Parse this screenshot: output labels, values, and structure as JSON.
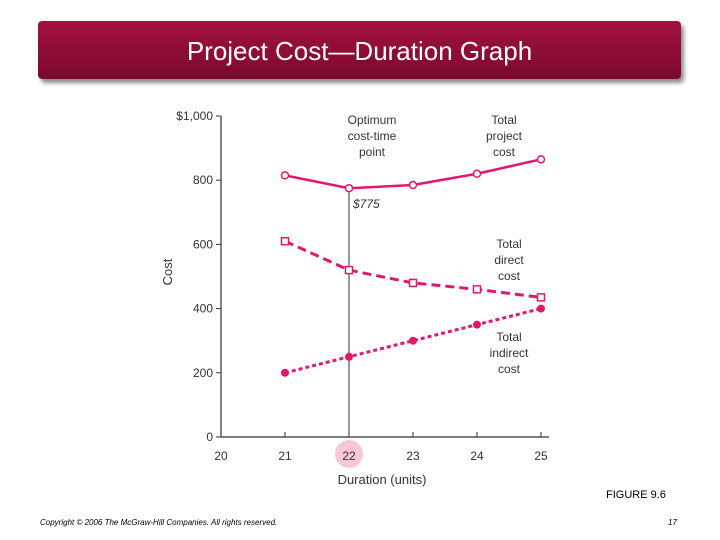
{
  "slide": {
    "title": "Project Cost—Duration Graph",
    "figure_label": "FIGURE 9.6",
    "copyright": "Copyright © 2006 The McGraw-Hill Companies. All rights reserved.",
    "page_number": "17"
  },
  "colors": {
    "title_bar": "#8b0d35",
    "series": "#e0196e",
    "axis": "#333333"
  },
  "chart_data": {
    "type": "line",
    "xlabel": "Duration (units)",
    "ylabel": "Cost",
    "xlim": [
      20,
      25
    ],
    "ylim": [
      0,
      1000
    ],
    "x_ticks": [
      "20",
      "21",
      "22",
      "23",
      "24",
      "25"
    ],
    "y_ticks": [
      "0",
      "200",
      "400",
      "600",
      "800",
      "$1,000"
    ],
    "highlighted_x_tick": "22",
    "x": [
      21,
      22,
      23,
      24,
      25
    ],
    "series": [
      {
        "name": "Total project cost",
        "label_lines": [
          "Total",
          "project",
          "cost"
        ],
        "values": [
          815,
          775,
          785,
          820,
          865
        ],
        "marker": "open-circle",
        "style": "solid"
      },
      {
        "name": "Total direct cost",
        "label_lines": [
          "Total",
          "direct",
          "cost"
        ],
        "values": [
          610,
          520,
          480,
          460,
          435
        ],
        "marker": "open-square",
        "style": "dashed"
      },
      {
        "name": "Total indirect cost",
        "label_lines": [
          "Total",
          "indirect",
          "cost"
        ],
        "values": [
          200,
          250,
          300,
          350,
          400
        ],
        "marker": "filled-circle",
        "style": "dotted"
      }
    ],
    "annotations": {
      "optimum_label": [
        "Optimum",
        "cost-time",
        "point"
      ],
      "optimum_x": 22,
      "value_label": "$775"
    }
  }
}
